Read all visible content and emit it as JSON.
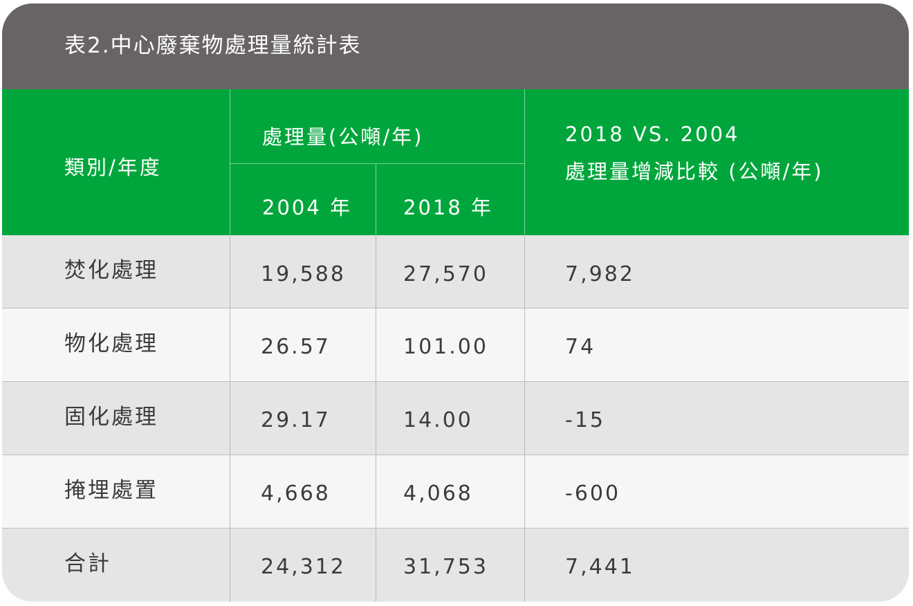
{
  "title": "表2.中心廢棄物處理量統計表",
  "header": {
    "category": "類別/年度",
    "amount_group": "處理量(公噸/年)",
    "year_2004": "2004 年",
    "year_2018": "2018 年",
    "compare_line1": "2018  VS.  2004",
    "compare_line2": "處理量增減比較 (公噸/年)"
  },
  "rows": [
    {
      "category": "焚化處理",
      "y2004": "19,588",
      "y2018": "27,570",
      "diff": "7,982"
    },
    {
      "category": "物化處理",
      "y2004": "26.57",
      "y2018": "101.00",
      "diff": "74"
    },
    {
      "category": "固化處理",
      "y2004": "29.17",
      "y2018": "14.00",
      "diff": "-15"
    },
    {
      "category": "掩埋處置",
      "y2004": "4,668",
      "y2018": "4,068",
      "diff": "-600"
    },
    {
      "category": "合計",
      "y2004": "24,312",
      "y2018": "31,753",
      "diff": "7,441"
    }
  ],
  "colors": {
    "title_bar": "#686465",
    "header": "#00a63c",
    "row_odd": "#e5e5e5",
    "row_even": "#f6f6f6",
    "text": "#3b3b3b"
  }
}
